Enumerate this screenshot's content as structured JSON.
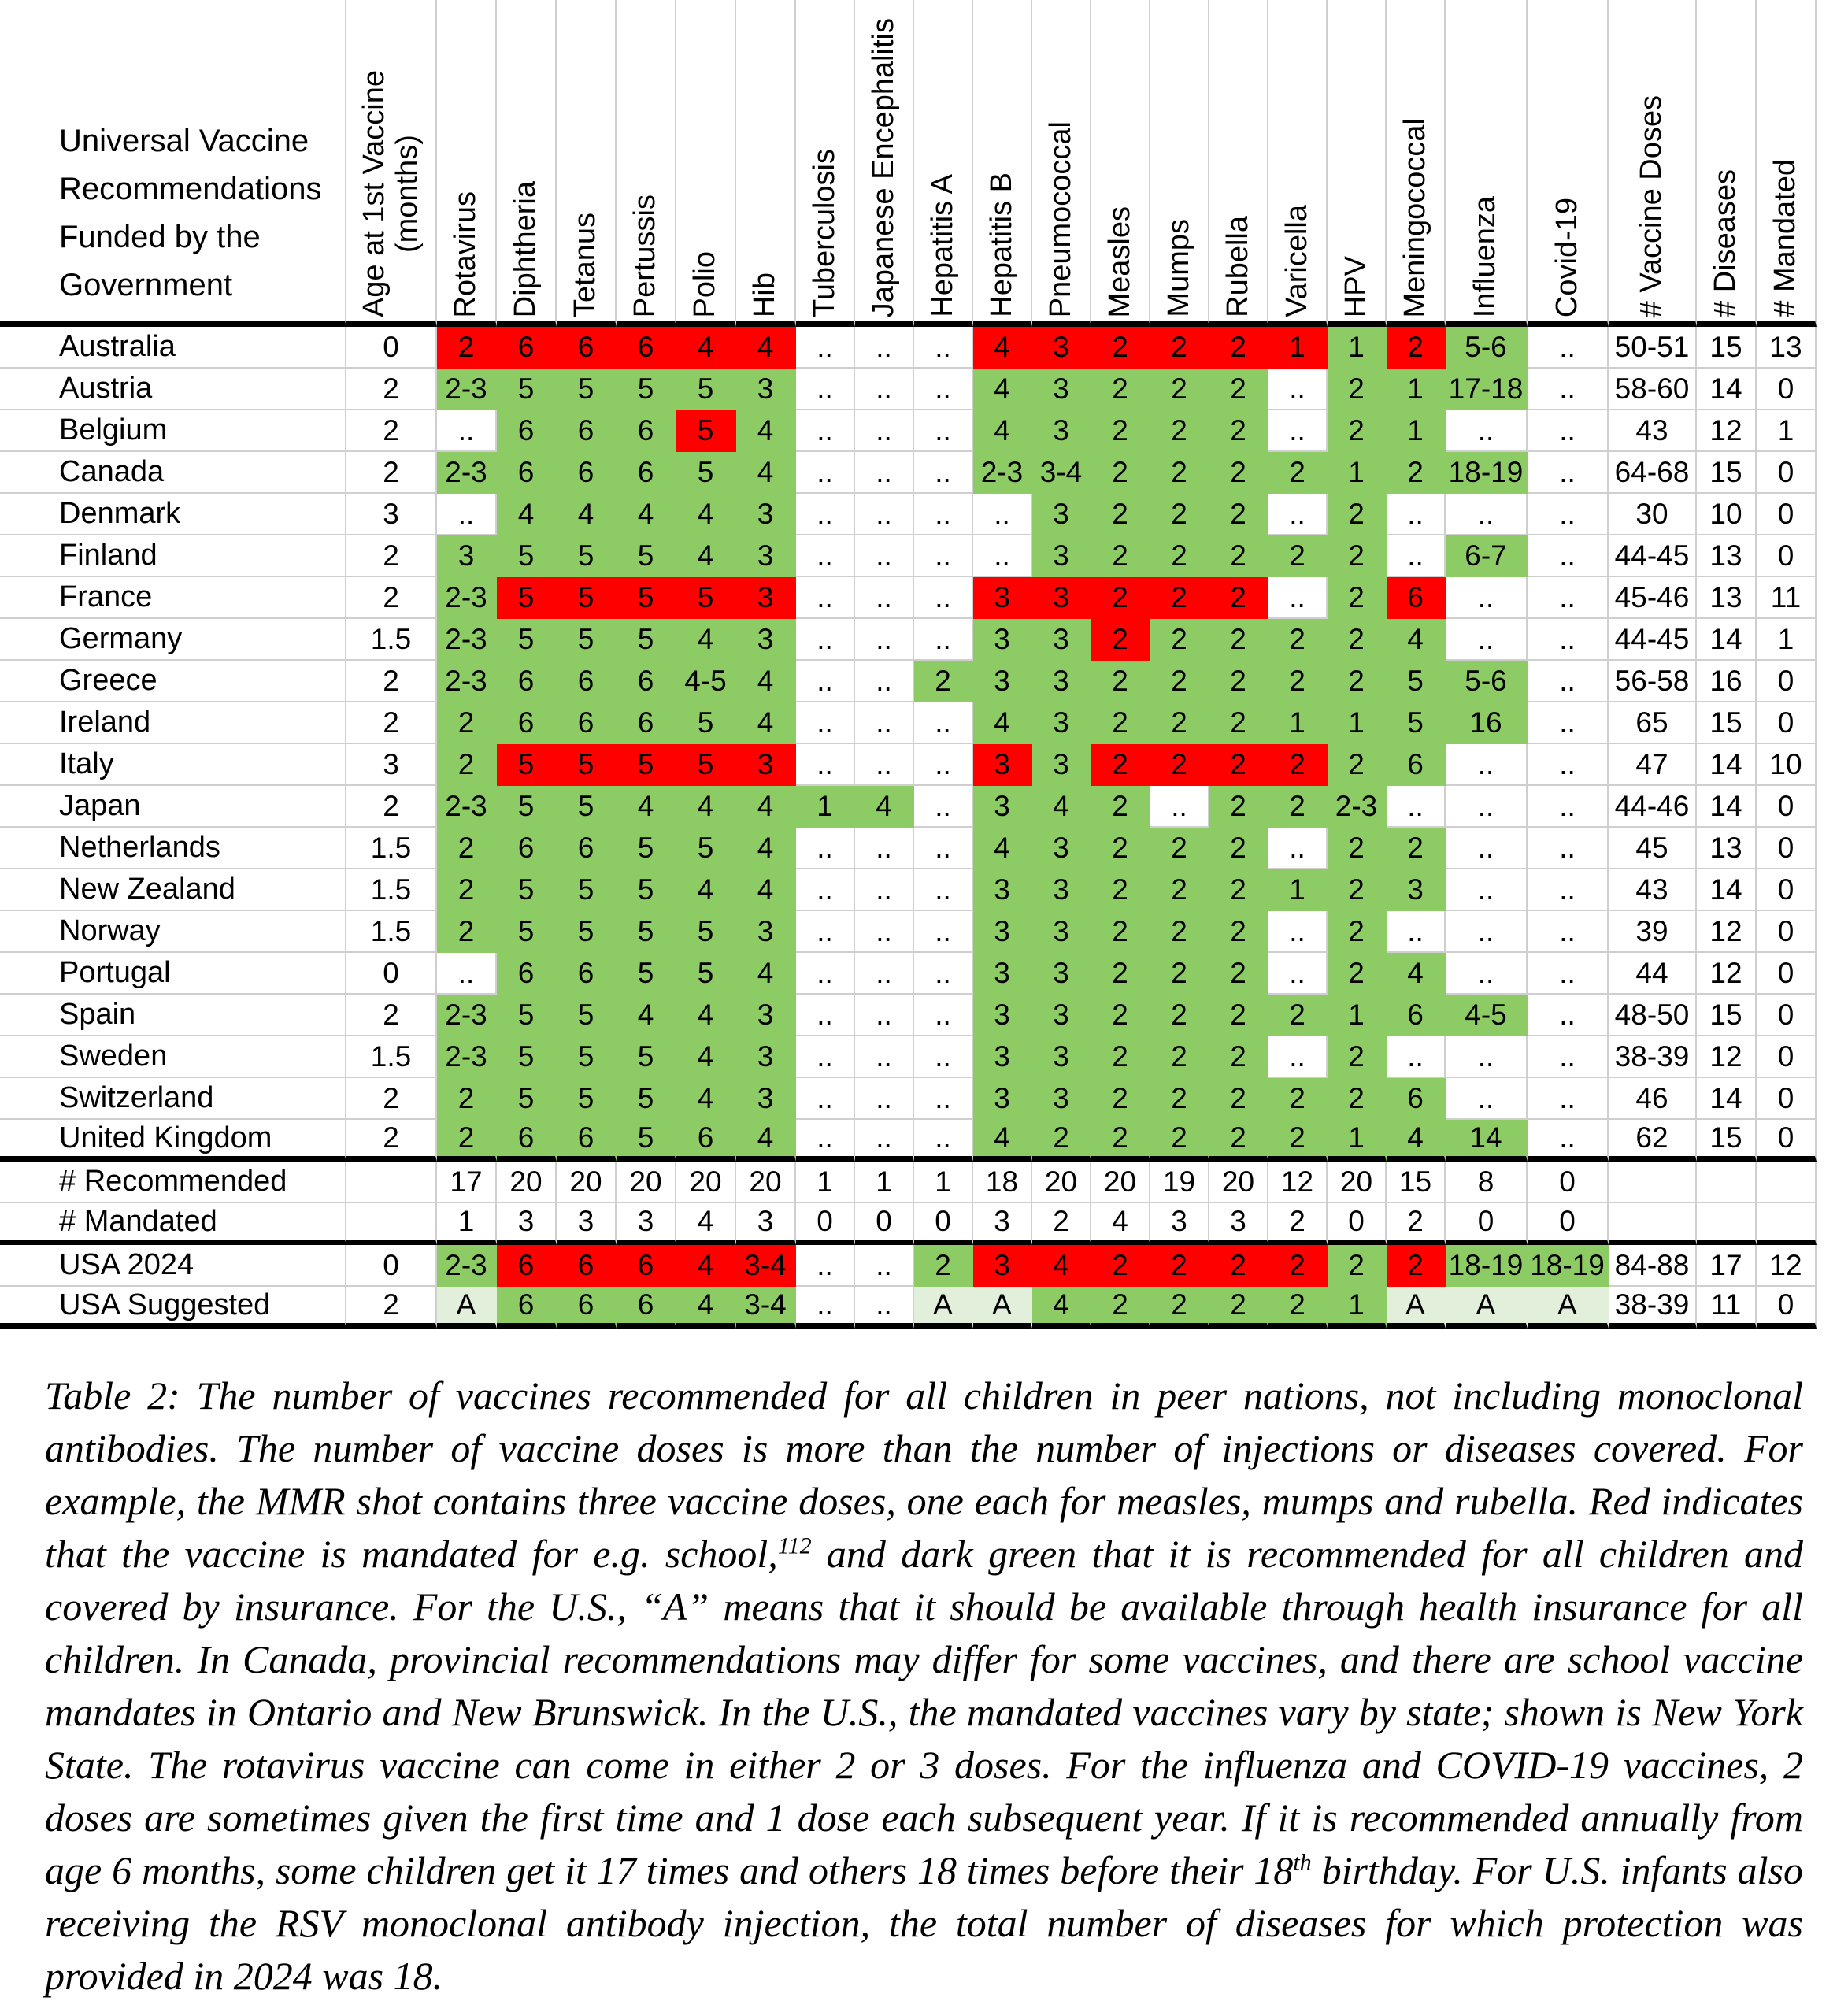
{
  "colors": {
    "recommended_green": "#8DCB64",
    "mandated_red": "#FE0000",
    "available_light_green": "#E2EFDA",
    "gridline": "#CFCFCF",
    "separator": "#000000"
  },
  "table": {
    "title": "Universal Vaccine\nRecommendations\nFunded by the\nGovernment",
    "columns": [
      "Age at 1st Vaccine\n(months)",
      "Rotavirus",
      "Diphtheria",
      "Tetanus",
      "Pertussis",
      "Polio",
      "Hib",
      "Tuberculosis",
      "Japanese Encephalitis",
      "Hepatitis A",
      "Hepatitis B",
      "Pneumococcal",
      "Measles",
      "Mumps",
      "Rubella",
      "Varicella",
      "HPV",
      "Meningococcal",
      "Influenza",
      "Covid-19",
      "# Vaccine Doses",
      "# Diseases",
      "# Mandated"
    ],
    "legend": {
      "g": "recommended and covered",
      "r": "mandated",
      "l": "available through health insurance",
      "w": "not recommended"
    },
    "rows": [
      {
        "name": "Australia",
        "cells": [
          "0|w",
          "2|r",
          "6|r",
          "6|r",
          "6|r",
          "4|r",
          "4|r",
          "..|w",
          "..|w",
          "..|w",
          "4|r",
          "3|r",
          "2|r",
          "2|r",
          "2|r",
          "1|r",
          "1|g",
          "2|r",
          "5-6|g",
          "..|w",
          "50-51|w",
          "15|w",
          "13|w"
        ]
      },
      {
        "name": "Austria",
        "cells": [
          "2|w",
          "2-3|g",
          "5|g",
          "5|g",
          "5|g",
          "5|g",
          "3|g",
          "..|w",
          "..|w",
          "..|w",
          "4|g",
          "3|g",
          "2|g",
          "2|g",
          "2|g",
          "..|w",
          "2|g",
          "1|g",
          "17-18|g",
          "..|w",
          "58-60|w",
          "14|w",
          "0|w"
        ]
      },
      {
        "name": "Belgium",
        "cells": [
          "2|w",
          "..|w",
          "6|g",
          "6|g",
          "6|g",
          "5|r",
          "4|g",
          "..|w",
          "..|w",
          "..|w",
          "4|g",
          "3|g",
          "2|g",
          "2|g",
          "2|g",
          "..|w",
          "2|g",
          "1|g",
          "..|w",
          "..|w",
          "43|w",
          "12|w",
          "1|w"
        ]
      },
      {
        "name": "Canada",
        "cells": [
          "2|w",
          "2-3|g",
          "6|g",
          "6|g",
          "6|g",
          "5|g",
          "4|g",
          "..|w",
          "..|w",
          "..|w",
          "2-3|g",
          "3-4|g",
          "2|g",
          "2|g",
          "2|g",
          "2|g",
          "1|g",
          "2|g",
          "18-19|g",
          "..|w",
          "64-68|w",
          "15|w",
          "0|w"
        ]
      },
      {
        "name": "Denmark",
        "cells": [
          "3|w",
          "..|w",
          "4|g",
          "4|g",
          "4|g",
          "4|g",
          "3|g",
          "..|w",
          "..|w",
          "..|w",
          "..|w",
          "3|g",
          "2|g",
          "2|g",
          "2|g",
          "..|w",
          "2|g",
          "..|w",
          "..|w",
          "..|w",
          "30|w",
          "10|w",
          "0|w"
        ]
      },
      {
        "name": "Finland",
        "cells": [
          "2|w",
          "3|g",
          "5|g",
          "5|g",
          "5|g",
          "4|g",
          "3|g",
          "..|w",
          "..|w",
          "..|w",
          "..|w",
          "3|g",
          "2|g",
          "2|g",
          "2|g",
          "2|g",
          "2|g",
          "..|w",
          "6-7|g",
          "..|w",
          "44-45|w",
          "13|w",
          "0|w"
        ]
      },
      {
        "name": "France",
        "cells": [
          "2|w",
          "2-3|g",
          "5|r",
          "5|r",
          "5|r",
          "5|r",
          "3|r",
          "..|w",
          "..|w",
          "..|w",
          "3|r",
          "3|r",
          "2|r",
          "2|r",
          "2|r",
          "..|w",
          "2|g",
          "6|r",
          "..|w",
          "..|w",
          "45-46|w",
          "13|w",
          "11|w"
        ]
      },
      {
        "name": "Germany",
        "cells": [
          "1.5|w",
          "2-3|g",
          "5|g",
          "5|g",
          "5|g",
          "4|g",
          "3|g",
          "..|w",
          "..|w",
          "..|w",
          "3|g",
          "3|g",
          "2|r",
          "2|g",
          "2|g",
          "2|g",
          "2|g",
          "4|g",
          "..|w",
          "..|w",
          "44-45|w",
          "14|w",
          "1|w"
        ]
      },
      {
        "name": "Greece",
        "cells": [
          "2|w",
          "2-3|g",
          "6|g",
          "6|g",
          "6|g",
          "4-5|g",
          "4|g",
          "..|w",
          "..|w",
          "2|g",
          "3|g",
          "3|g",
          "2|g",
          "2|g",
          "2|g",
          "2|g",
          "2|g",
          "5|g",
          "5-6|g",
          "..|w",
          "56-58|w",
          "16|w",
          "0|w"
        ]
      },
      {
        "name": "Ireland",
        "cells": [
          "2|w",
          "2|g",
          "6|g",
          "6|g",
          "6|g",
          "5|g",
          "4|g",
          "..|w",
          "..|w",
          "..|w",
          "4|g",
          "3|g",
          "2|g",
          "2|g",
          "2|g",
          "1|g",
          "1|g",
          "5|g",
          "16|g",
          "..|w",
          "65|w",
          "15|w",
          "0|w"
        ]
      },
      {
        "name": "Italy",
        "cells": [
          "3|w",
          "2|g",
          "5|r",
          "5|r",
          "5|r",
          "5|r",
          "3|r",
          "..|w",
          "..|w",
          "..|w",
          "3|r",
          "3|g",
          "2|r",
          "2|r",
          "2|r",
          "2|r",
          "2|g",
          "6|g",
          "..|w",
          "..|w",
          "47|w",
          "14|w",
          "10|w"
        ]
      },
      {
        "name": "Japan",
        "cells": [
          "2|w",
          "2-3|g",
          "5|g",
          "5|g",
          "4|g",
          "4|g",
          "4|g",
          "1|g",
          "4|g",
          "..|w",
          "3|g",
          "4|g",
          "2|g",
          "..|w",
          "2|g",
          "2|g",
          "2-3|g",
          "..|w",
          "..|w",
          "..|w",
          "44-46|w",
          "14|w",
          "0|w"
        ]
      },
      {
        "name": "Netherlands",
        "cells": [
          "1.5|w",
          "2|g",
          "6|g",
          "6|g",
          "5|g",
          "5|g",
          "4|g",
          "..|w",
          "..|w",
          "..|w",
          "4|g",
          "3|g",
          "2|g",
          "2|g",
          "2|g",
          "..|w",
          "2|g",
          "2|g",
          "..|w",
          "..|w",
          "45|w",
          "13|w",
          "0|w"
        ]
      },
      {
        "name": "New Zealand",
        "cells": [
          "1.5|w",
          "2|g",
          "5|g",
          "5|g",
          "5|g",
          "4|g",
          "4|g",
          "..|w",
          "..|w",
          "..|w",
          "3|g",
          "3|g",
          "2|g",
          "2|g",
          "2|g",
          "1|g",
          "2|g",
          "3|g",
          "..|w",
          "..|w",
          "43|w",
          "14|w",
          "0|w"
        ]
      },
      {
        "name": "Norway",
        "cells": [
          "1.5|w",
          "2|g",
          "5|g",
          "5|g",
          "5|g",
          "5|g",
          "3|g",
          "..|w",
          "..|w",
          "..|w",
          "3|g",
          "3|g",
          "2|g",
          "2|g",
          "2|g",
          "..|w",
          "2|g",
          "..|w",
          "..|w",
          "..|w",
          "39|w",
          "12|w",
          "0|w"
        ]
      },
      {
        "name": "Portugal",
        "cells": [
          "0|w",
          "..|w",
          "6|g",
          "6|g",
          "5|g",
          "5|g",
          "4|g",
          "..|w",
          "..|w",
          "..|w",
          "3|g",
          "3|g",
          "2|g",
          "2|g",
          "2|g",
          "..|w",
          "2|g",
          "4|g",
          "..|w",
          "..|w",
          "44|w",
          "12|w",
          "0|w"
        ]
      },
      {
        "name": "Spain",
        "cells": [
          "2|w",
          "2-3|g",
          "5|g",
          "5|g",
          "4|g",
          "4|g",
          "3|g",
          "..|w",
          "..|w",
          "..|w",
          "3|g",
          "3|g",
          "2|g",
          "2|g",
          "2|g",
          "2|g",
          "1|g",
          "6|g",
          "4-5|g",
          "..|w",
          "48-50|w",
          "15|w",
          "0|w"
        ]
      },
      {
        "name": "Sweden",
        "cells": [
          "1.5|w",
          "2-3|g",
          "5|g",
          "5|g",
          "5|g",
          "4|g",
          "3|g",
          "..|w",
          "..|w",
          "..|w",
          "3|g",
          "3|g",
          "2|g",
          "2|g",
          "2|g",
          "..|w",
          "2|g",
          "..|w",
          "..|w",
          "..|w",
          "38-39|w",
          "12|w",
          "0|w"
        ]
      },
      {
        "name": "Switzerland",
        "cells": [
          "2|w",
          "2|g",
          "5|g",
          "5|g",
          "5|g",
          "4|g",
          "3|g",
          "..|w",
          "..|w",
          "..|w",
          "3|g",
          "3|g",
          "2|g",
          "2|g",
          "2|g",
          "2|g",
          "2|g",
          "6|g",
          "..|w",
          "..|w",
          "46|w",
          "14|w",
          "0|w"
        ]
      },
      {
        "name": "United Kingdom",
        "sep": true,
        "cells": [
          "2|w",
          "2|g",
          "6|g",
          "6|g",
          "5|g",
          "6|g",
          "4|g",
          "..|w",
          "..|w",
          "..|w",
          "4|g",
          "2|g",
          "2|g",
          "2|g",
          "2|g",
          "2|g",
          "1|g",
          "4|g",
          "14|g",
          "..|w",
          "62|w",
          "15|w",
          "0|w"
        ]
      },
      {
        "name": "# Recommended",
        "cells": [
          "|w",
          "17|w",
          "20|w",
          "20|w",
          "20|w",
          "20|w",
          "20|w",
          "1|w",
          "1|w",
          "1|w",
          "18|w",
          "20|w",
          "20|w",
          "19|w",
          "20|w",
          "12|w",
          "20|w",
          "15|w",
          "8|w",
          "0|w",
          "|w",
          "|w",
          "|w"
        ]
      },
      {
        "name": "# Mandated",
        "sep": true,
        "cells": [
          "|w",
          "1|w",
          "3|w",
          "3|w",
          "3|w",
          "4|w",
          "3|w",
          "0|w",
          "0|w",
          "0|w",
          "3|w",
          "2|w",
          "4|w",
          "3|w",
          "3|w",
          "2|w",
          "0|w",
          "2|w",
          "0|w",
          "0|w",
          "|w",
          "|w",
          "|w"
        ]
      },
      {
        "name": "USA 2024",
        "cells": [
          "0|w",
          "2-3|g",
          "6|r",
          "6|r",
          "6|r",
          "4|r",
          "3-4|r",
          "..|w",
          "..|w",
          "2|g",
          "3|r",
          "4|r",
          "2|r",
          "2|r",
          "2|r",
          "2|r",
          "2|g",
          "2|r",
          "18-19|g",
          "18-19|g",
          "84-88|w",
          "17|w",
          "12|w"
        ]
      },
      {
        "name": "USA Suggested",
        "sep": true,
        "cells": [
          "2|w",
          "A|l",
          "6|g",
          "6|g",
          "6|g",
          "4|g",
          "3-4|g",
          "..|w",
          "..|w",
          "A|l",
          "A|l",
          "4|g",
          "2|g",
          "2|g",
          "2|g",
          "2|g",
          "1|g",
          "A|l",
          "A|l",
          "A|l",
          "38-39|w",
          "11|w",
          "0|w"
        ]
      }
    ]
  },
  "caption": {
    "segments": [
      {
        "text": "Table 2: The number of vaccines recommended for all children in peer nations, not including monoclonal antibodies. The number of vaccine doses is more than the number of injections or diseases covered. For example, the MMR shot contains three vaccine doses, one each for measles, mumps and rubella. Red indicates that the vaccine is mandated for e.g. school,"
      },
      {
        "sup": "112"
      },
      {
        "text": " and dark green that it is recommended for all children and covered by insurance. For the U.S., “A” means that it should be available through health insurance for all children. In Canada, provincial recommendations may differ for some vaccines, and there are school vaccine mandates in Ontario and New Brunswick. In the U.S., the mandated vaccines vary by state; shown is New York State. The rotavirus vaccine can come in either 2 or 3 doses. For the influenza and COVID-19 vaccines, 2 doses are sometimes given the first time and 1 dose each subsequent year. If it is recommended annually from age 6 months, some children get it 17 times and others 18 times before their 18"
      },
      {
        "sup": "th"
      },
      {
        "text": " birthday. For U.S. infants also receiving the RSV monoclonal antibody injection, the total number of diseases for which protection was provided in 2024 was 18."
      }
    ]
  }
}
